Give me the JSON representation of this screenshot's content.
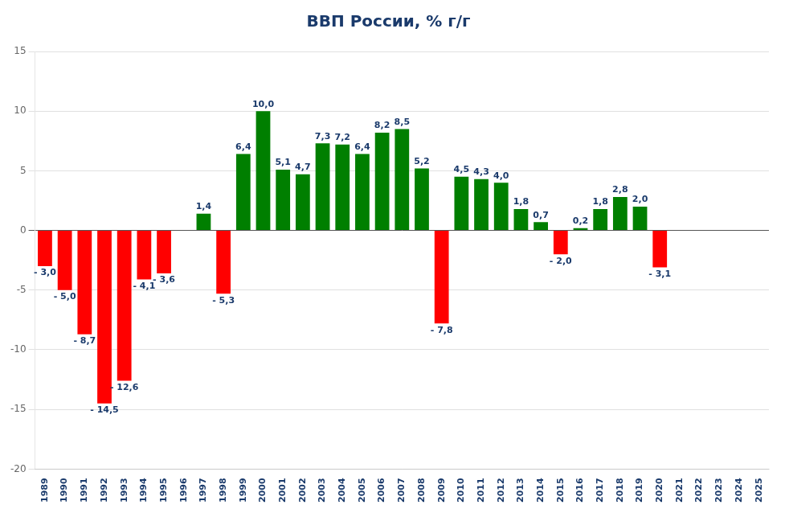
{
  "chart_data": {
    "type": "bar",
    "title": "ВВП России, % г/г",
    "categories": [
      "1989",
      "1990",
      "1991",
      "1992",
      "1993",
      "1994",
      "1995",
      "1996",
      "1997",
      "1998",
      "1999",
      "2000",
      "2001",
      "2002",
      "2003",
      "2004",
      "2005",
      "2006",
      "2007",
      "2008",
      "2009",
      "2010",
      "2011",
      "2012",
      "2013",
      "2014",
      "2015",
      "2016",
      "2017",
      "2018",
      "2019",
      "2020",
      "2021",
      "2022",
      "2023",
      "2024",
      "2025"
    ],
    "values": [
      -3.0,
      -5.0,
      -8.7,
      -14.5,
      -12.6,
      -4.1,
      -3.6,
      null,
      1.4,
      -5.3,
      6.4,
      10.0,
      5.1,
      4.7,
      7.3,
      7.2,
      6.4,
      8.2,
      8.5,
      5.2,
      -7.8,
      4.5,
      4.3,
      4.0,
      1.8,
      0.7,
      -2.0,
      0.2,
      1.8,
      2.8,
      2.0,
      -3.1,
      null,
      null,
      null,
      null,
      null
    ],
    "value_labels": [
      "- 3,0",
      "- 5,0",
      "- 8,7",
      "- 14,5",
      "- 12,6",
      "- 4,1",
      "- 3,6",
      null,
      "1,4",
      "- 5,3",
      "6,4",
      "10,0",
      "5,1",
      "4,7",
      "7,3",
      "7,2",
      "6,4",
      "8,2",
      "8,5",
      "5,2",
      "- 7,8",
      "4,5",
      "4,3",
      "4,0",
      "1,8",
      "0,7",
      "- 2,0",
      "0,2",
      "1,8",
      "2,8",
      "2,0",
      "- 3,1",
      null,
      null,
      null,
      null,
      null
    ],
    "colors": [
      "#ff0000",
      "#ff0000",
      "#ff0000",
      "#ff0000",
      "#ff0000",
      "#ff0000",
      "#ff0000",
      null,
      "#007f00",
      "#ff0000",
      "#007f00",
      "#007f00",
      "#007f00",
      "#007f00",
      "#007f00",
      "#007f00",
      "#007f00",
      "#007f00",
      "#007f00",
      "#007f00",
      "#ff0000",
      "#007f00",
      "#007f00",
      "#007f00",
      "#007f00",
      "#007f00",
      "#ff0000",
      "#007f00",
      "#007f00",
      "#007f00",
      "#007f00",
      "#ff0000",
      null,
      null,
      null,
      null,
      null
    ],
    "ylim": [
      -20,
      15
    ],
    "yticks": [
      -20,
      -15,
      -10,
      -5,
      0,
      5,
      10,
      15
    ],
    "grid": true,
    "data_labels": true
  }
}
